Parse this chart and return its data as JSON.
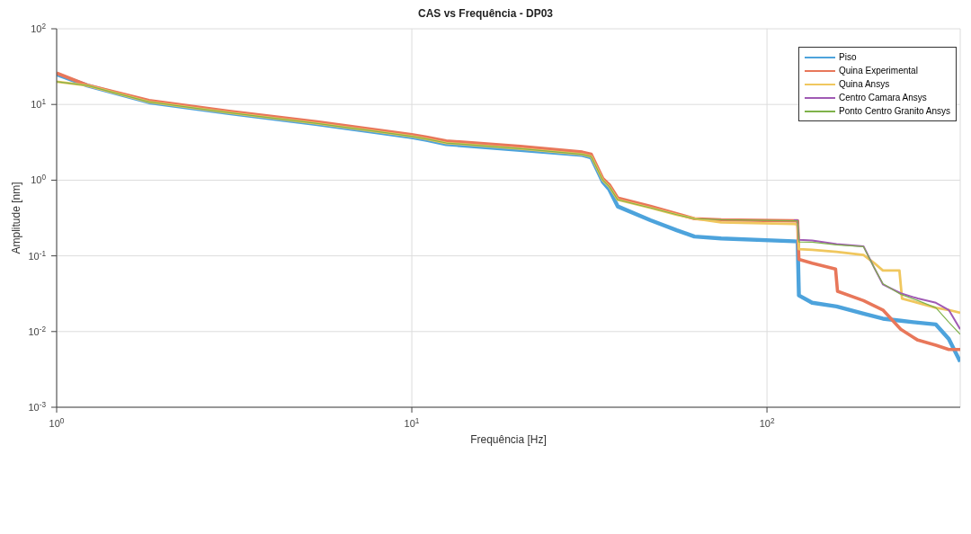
{
  "chart_data": {
    "type": "line",
    "title": "CAS vs Frequência - DP03",
    "xlabel": "Frequência [Hz]",
    "ylabel": "Amplitude [nm]",
    "log": "xy",
    "grid": true,
    "legend": "top right",
    "line_style": "solid",
    "marker": "none",
    "xlim": [
      1,
      350
    ],
    "xticks": [
      {
        "value": 1,
        "label": "10$^{0}$"
      },
      {
        "value": 10,
        "label": "10$^{1}$"
      },
      {
        "value": 100,
        "label": "10$^{2}$"
      }
    ],
    "ylim": [
      0.001,
      100
    ],
    "yticks": [
      {
        "value": 0.001,
        "label": "10$^{-3}$"
      },
      {
        "value": 0.01,
        "label": "10$^{-2}$"
      },
      {
        "value": 0.1,
        "label": "10$^{-1}$"
      },
      {
        "value": 1,
        "label": "10$^{0}$"
      },
      {
        "value": 10,
        "label": "10$^{1}$"
      },
      {
        "value": 100,
        "label": "10$^{2}$"
      }
    ],
    "series": [
      {
        "name": "Piso",
        "color": "#4da3dc",
        "x": [
          1,
          1.22,
          1.82,
          3.06,
          5.42,
          10,
          11,
          12.5,
          20.2,
          30.2,
          32,
          34.5,
          36,
          38,
          47,
          55.7,
          62.5,
          74.3,
          119,
          122,
          123,
          134,
          157,
          187,
          212,
          238,
          266,
          299,
          325,
          350
        ],
        "values": [
          25,
          17.8,
          10.7,
          7.7,
          5.5,
          3.7,
          3.4,
          3.0,
          2.5,
          2.15,
          2.0,
          0.95,
          0.75,
          0.45,
          0.295,
          0.218,
          0.18,
          0.17,
          0.156,
          0.155,
          0.03,
          0.024,
          0.0215,
          0.0172,
          0.0148,
          0.0139,
          0.0131,
          0.0124,
          0.008,
          0.004
        ]
      },
      {
        "name": "Quina Experimental",
        "color": "#e8775a",
        "x": [
          1,
          1.22,
          1.82,
          3.06,
          5.42,
          10,
          11,
          12.5,
          20.2,
          30.2,
          32,
          34.5,
          36,
          38,
          47,
          55.7,
          62.5,
          74.3,
          119,
          122,
          123,
          134,
          156,
          158,
          187,
          212,
          238,
          266,
          299,
          325,
          350
        ],
        "values": [
          26,
          18,
          11.3,
          8.1,
          5.9,
          4.0,
          3.7,
          3.3,
          2.8,
          2.35,
          2.2,
          1.05,
          0.87,
          0.58,
          0.45,
          0.36,
          0.31,
          0.3,
          0.29,
          0.29,
          0.09,
          0.08,
          0.067,
          0.034,
          0.0256,
          0.0193,
          0.0107,
          0.0077,
          0.0066,
          0.0058,
          0.0058
        ]
      },
      {
        "name": "Quina Ansys",
        "color": "#f0c75e",
        "x": [
          1,
          1.22,
          1.82,
          3.06,
          5.42,
          10,
          11,
          12.5,
          20.2,
          30.2,
          32,
          34.5,
          36,
          38,
          47,
          55.7,
          62.5,
          74.3,
          119,
          122,
          123,
          134,
          157,
          187,
          200,
          212,
          236,
          240,
          266,
          299,
          325,
          350
        ],
        "values": [
          20,
          17.8,
          10.8,
          7.8,
          5.6,
          3.8,
          3.5,
          3.1,
          2.6,
          2.2,
          2.05,
          1.0,
          0.82,
          0.55,
          0.43,
          0.35,
          0.31,
          0.276,
          0.264,
          0.26,
          0.123,
          0.12,
          0.113,
          0.103,
          0.081,
          0.064,
          0.064,
          0.0273,
          0.024,
          0.0206,
          0.0193,
          0.0177
        ]
      },
      {
        "name": "Centro Camara Ansys",
        "color": "#a05ab4",
        "x": [
          119,
          122,
          123,
          134,
          157,
          187,
          200,
          212,
          238,
          266,
          299,
          325,
          350
        ],
        "values": [
          0.295,
          0.295,
          0.163,
          0.16,
          0.143,
          0.134,
          0.071,
          0.042,
          0.032,
          0.0273,
          0.024,
          0.0193,
          0.0107
        ]
      },
      {
        "name": "Ponto Centro Granito Ansys",
        "color": "#7fb24a",
        "x": [
          1,
          1.22,
          1.82,
          3.06,
          5.42,
          10,
          11,
          12.5,
          20.2,
          30.2,
          32,
          34.5,
          36,
          38,
          47,
          55.7,
          62.5,
          74.3,
          119,
          122,
          123,
          134,
          157,
          187,
          200,
          212,
          238,
          266,
          299,
          325,
          350
        ],
        "values": [
          20,
          17.8,
          10.8,
          7.8,
          5.6,
          3.8,
          3.5,
          3.1,
          2.6,
          2.2,
          2.05,
          1.0,
          0.82,
          0.55,
          0.43,
          0.35,
          0.31,
          0.3,
          0.29,
          0.29,
          0.153,
          0.152,
          0.14,
          0.132,
          0.071,
          0.043,
          0.031,
          0.0256,
          0.0206,
          0.0133,
          0.0092
        ]
      }
    ]
  }
}
